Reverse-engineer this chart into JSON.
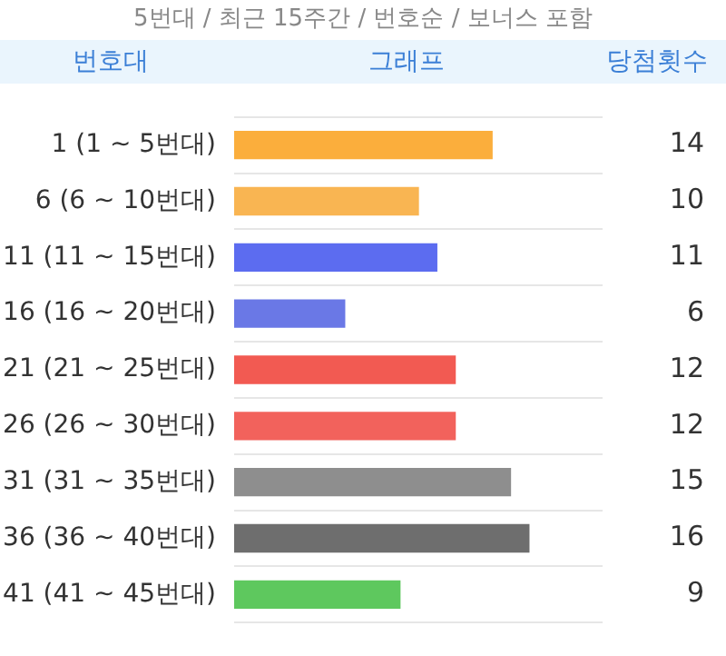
{
  "chart_data": {
    "type": "bar",
    "orientation": "horizontal",
    "title": "5번대 / 최근 15주간 / 번호순 / 보너스 포함",
    "ylabel": "번호대",
    "xlabel": "그래프",
    "annotations": [
      "당첨횟수"
    ],
    "categories": [
      "1 (1 ~ 5번대)",
      "6 (6 ~ 10번대)",
      "11 (11 ~ 15번대)",
      "16 (16 ~ 20번대)",
      "21 (21 ~ 25번대)",
      "26 (26 ~ 30번대)",
      "31 (31 ~ 35번대)",
      "36 (36 ~ 40번대)",
      "41 (41 ~ 45번대)"
    ],
    "values": [
      14,
      10,
      11,
      6,
      12,
      12,
      15,
      16,
      9
    ],
    "colors": [
      "#fbae3c",
      "#f9b552",
      "#5c6cf0",
      "#6a78e6",
      "#f25a52",
      "#f2625c",
      "#8e8e8e",
      "#6e6e6e",
      "#5ec85e"
    ],
    "data_labels": true,
    "grid": "y",
    "legend": false
  }
}
